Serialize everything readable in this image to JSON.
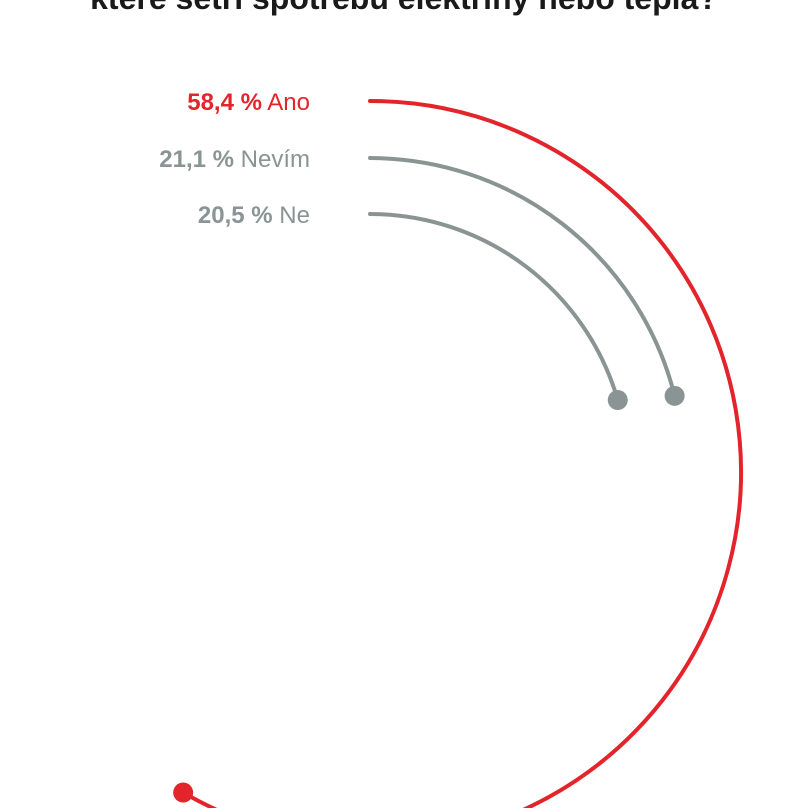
{
  "chart_data": {
    "type": "radial-bar",
    "title": "které setří spotřebu elektřiny nebo tepla?",
    "series": [
      {
        "value_label": "58,4 %",
        "name": "Ano",
        "value": 58.4,
        "color": "#e3242b"
      },
      {
        "value_label": "21,1 %",
        "name": "Nevím",
        "value": 21.1,
        "color": "#8a9494"
      },
      {
        "value_label": "20,5 %",
        "name": "Ne",
        "value": 20.5,
        "color": "#8a9494"
      }
    ],
    "max_value": 100
  }
}
